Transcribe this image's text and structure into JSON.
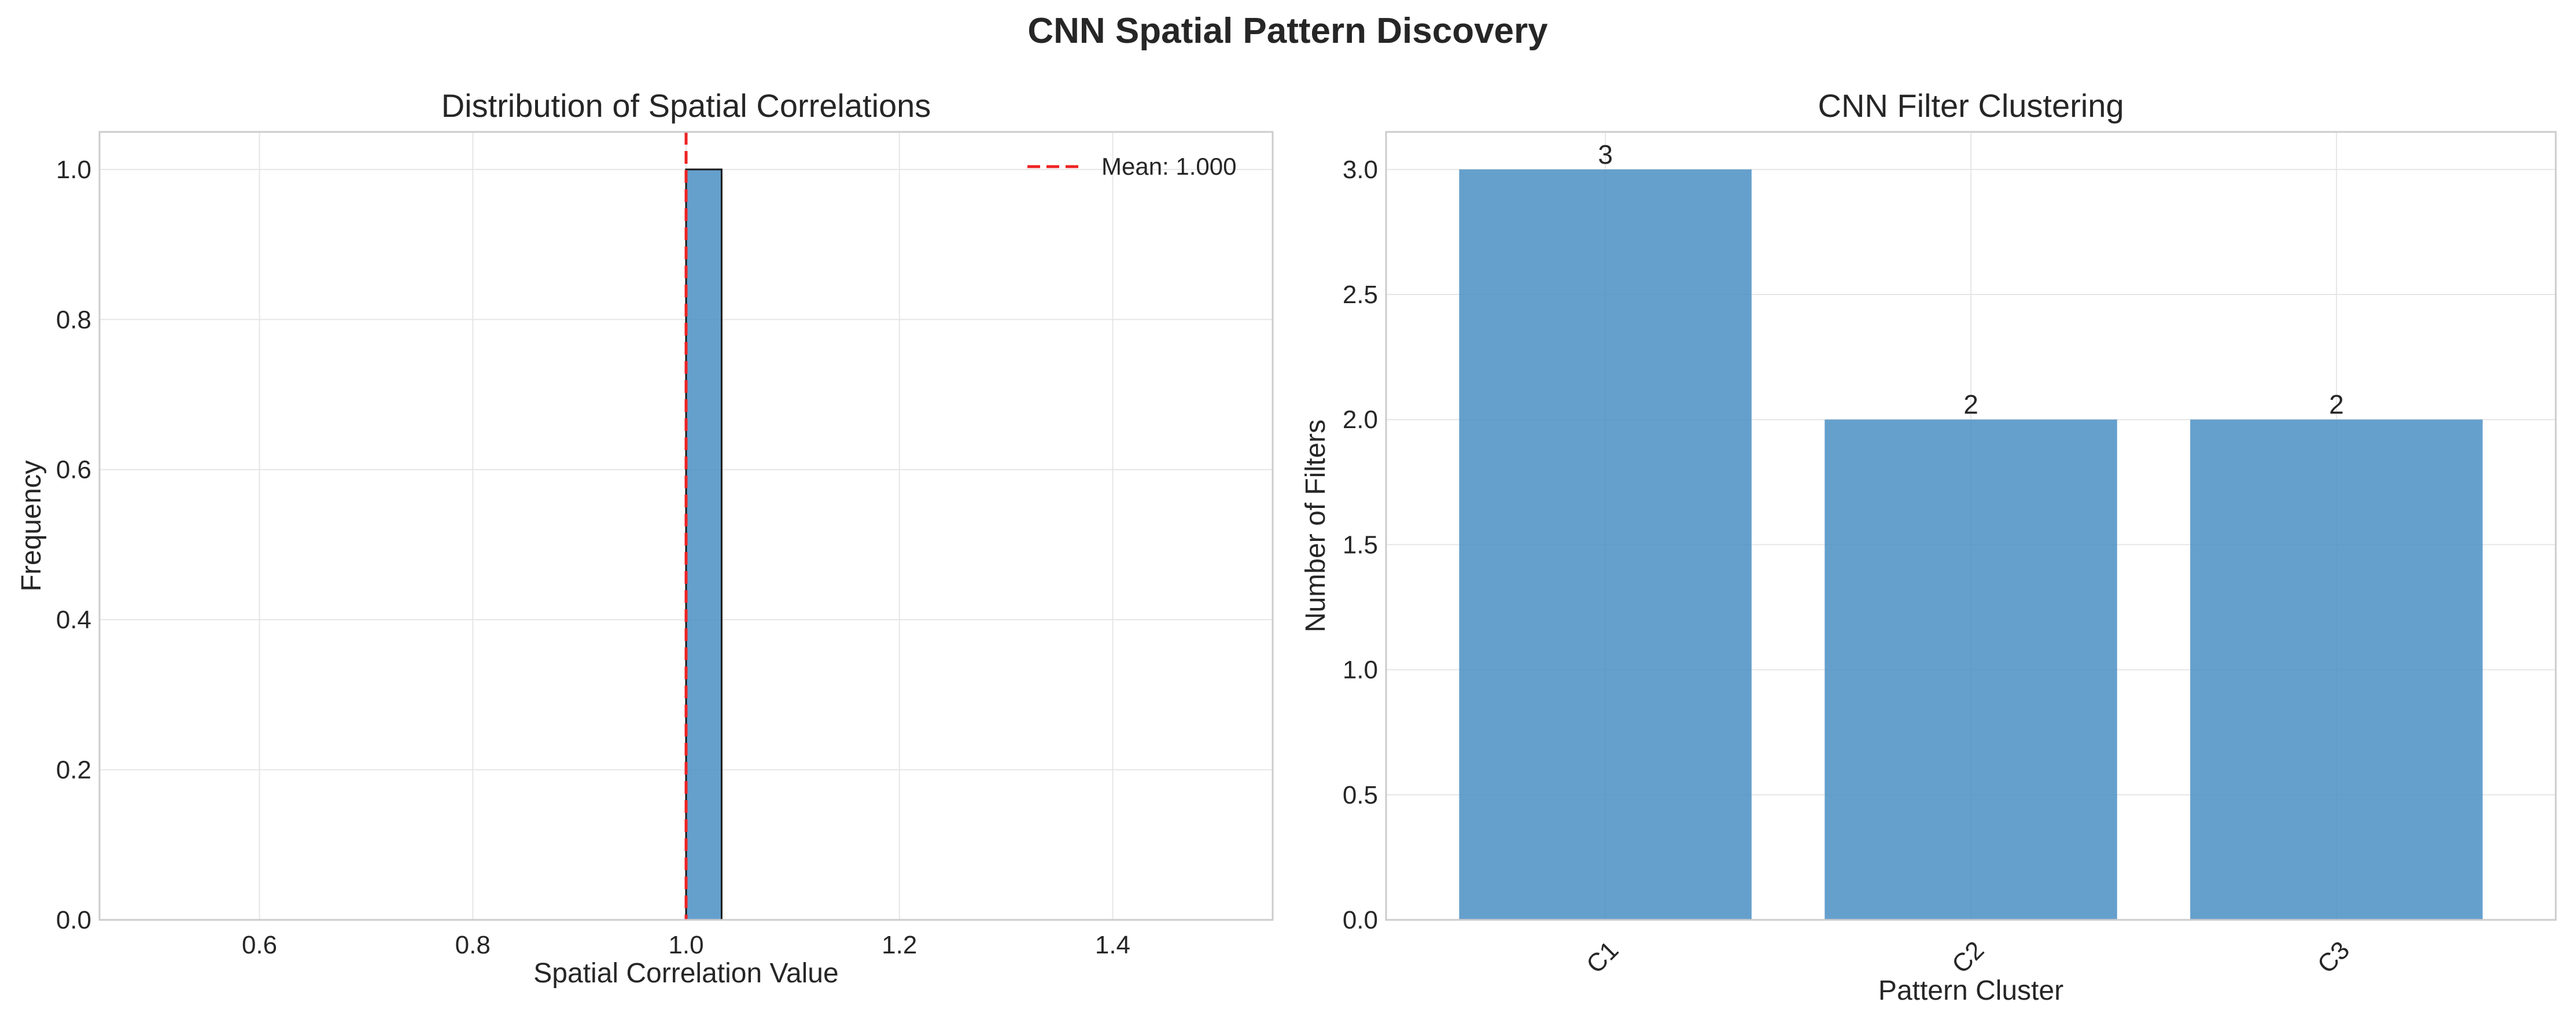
{
  "suptitle": "CNN Spatial Pattern Discovery",
  "colors": {
    "bar": "#4a8fc4",
    "mean_line": "#ee2222",
    "grid": "#e6e6e6",
    "spine": "#cccccc"
  },
  "chart_data": [
    {
      "type": "bar",
      "chart": "histogram",
      "title": "Distribution of Spatial Correlations",
      "xlabel": "Spatial Correlation Value",
      "ylabel": "Frequency",
      "xlim": [
        0.45,
        1.55
      ],
      "ylim": [
        0,
        1.05
      ],
      "xticks": [
        "0.6",
        "0.8",
        "1.0",
        "1.2",
        "1.4"
      ],
      "yticks": [
        "0.0",
        "0.2",
        "0.4",
        "0.6",
        "0.8",
        "1.0"
      ],
      "bins": [
        {
          "x0": 1.0,
          "x1": 1.0333,
          "count": 1
        }
      ],
      "mean": 1.0,
      "legend": {
        "label": "Mean: 1.000",
        "position": "top-right"
      },
      "grid": true
    },
    {
      "type": "bar",
      "title": "CNN Filter Clustering",
      "xlabel": "Pattern Cluster",
      "ylabel": "Number of Filters",
      "categories": [
        "C1",
        "C2",
        "C3"
      ],
      "values": [
        3,
        2,
        2
      ],
      "data_labels": [
        "3",
        "2",
        "2"
      ],
      "ylim": [
        0,
        3.15
      ],
      "yticks": [
        "0.0",
        "0.5",
        "1.0",
        "1.5",
        "2.0",
        "2.5",
        "3.0"
      ],
      "grid": true
    }
  ]
}
